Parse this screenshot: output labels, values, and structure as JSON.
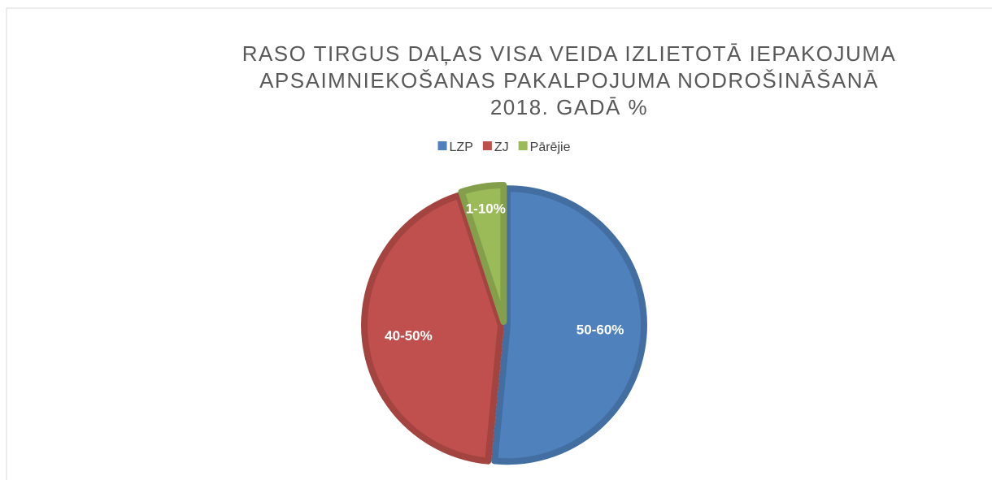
{
  "chart_data": {
    "type": "pie",
    "title": [
      "RASO TIRGUS DAĻAS VISA VEIDA IZLIETOTĀ IEPAKOJUMA",
      "APSAIMNIEKOŠANAS PAKALPOJUMA NODROŠINĀŠANĀ",
      "2018. GADĀ %"
    ],
    "categories": [
      "LZP",
      "ZJ",
      "Pārējie"
    ],
    "values": [
      51.5,
      43.5,
      5
    ],
    "value_labels": [
      "50-60%",
      "40-50%",
      "1-10%"
    ],
    "colors": [
      "#4f81bd",
      "#c0504d",
      "#9bbb59"
    ],
    "legend": "top"
  }
}
